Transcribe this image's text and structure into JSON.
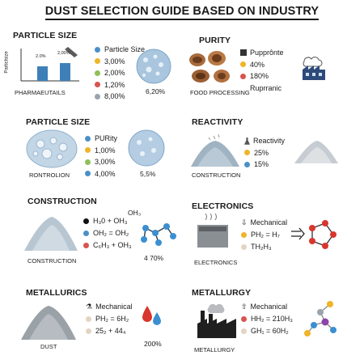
{
  "title": "DUST SELECTION GUIDE BASED ON INDUSTRY",
  "colors": {
    "blue": "#4a90c8",
    "yellow": "#f0b428",
    "green": "#8fbf5a",
    "red": "#d9534f",
    "gray": "#9aa4ad",
    "tan": "#e3d5c2",
    "dust_blue": "#c9d9e8"
  },
  "sections": {
    "s1": {
      "heading": "PARTICLE SIZE",
      "chart_ylabel": "Particlsize",
      "bar1_label": "2.0%",
      "bar2_label": "2,00%",
      "caption": "PHARMAEUTAILS",
      "legend": [
        "Particle Size",
        "3,00%",
        "2,00%",
        "1,20%",
        "8,00%"
      ],
      "value": "6,20%",
      "chart_data": {
        "type": "bar",
        "values": [
          2.0,
          2.0
        ],
        "bar_labels": [
          "2.0%",
          "2,00%"
        ]
      }
    },
    "s2": {
      "heading": "PURITY",
      "caption": "FOOD PROCESSING",
      "legend": [
        "Pupprônte",
        "40%",
        "180%",
        "Ruprranic"
      ]
    },
    "s3": {
      "heading": "PARTICLE SIZE",
      "caption": "RONTROLION",
      "legend": [
        "PURity",
        "1,00%",
        "3,00%",
        "4,00%"
      ],
      "value": "5,5%"
    },
    "s4": {
      "heading": "REACTIVITY",
      "caption": "CONSTRUCTION",
      "legend": [
        "Reactivity",
        "25%",
        "15%"
      ]
    },
    "s5": {
      "heading": "CONSTRUCTION",
      "caption": "CONSTRUCTION",
      "formula_top": "OH₃",
      "formula": [
        "H₃0 + OH₃",
        "OH₂ = OH₂",
        "C₆H₃ + OH₃"
      ],
      "value": "4 70%"
    },
    "s6": {
      "heading": "ELECTRONICS",
      "caption": "ELECTRONICS",
      "formula": [
        "Mechanical",
        "PH₂ = H₇",
        "TH₂H₃"
      ]
    },
    "s7": {
      "heading": "METALLURICS",
      "caption": "DUST",
      "formula": [
        "Mechanical",
        "PH₂ = 6H₂",
        "25₂ + 44₄"
      ],
      "value": "200%"
    },
    "s8": {
      "heading": "METALLURGY",
      "caption": "METALLURGY",
      "formula": [
        "Mechanical",
        "HH₂ = 210H₃",
        "GH₁ = 60H₂"
      ]
    }
  }
}
